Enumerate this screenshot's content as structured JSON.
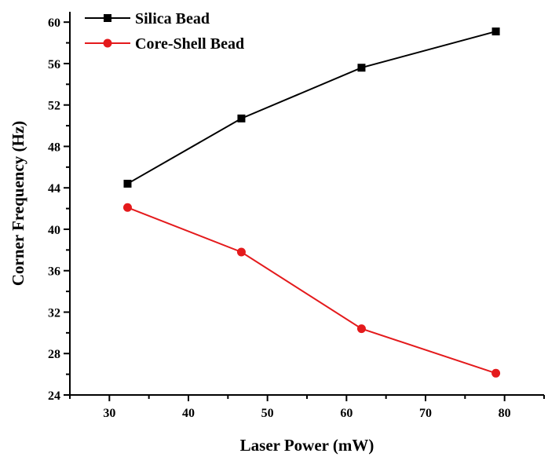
{
  "chart_data": {
    "type": "line",
    "title": "",
    "xlabel": "Laser Power (mW)",
    "ylabel": "Corner Frequency (Hz)",
    "xlim": [
      25,
      85
    ],
    "ylim": [
      24,
      61
    ],
    "xticks": [
      30,
      40,
      50,
      60,
      70,
      80
    ],
    "yticks": [
      24,
      28,
      32,
      36,
      40,
      44,
      48,
      52,
      56,
      60
    ],
    "grid": false,
    "legend": "top-left",
    "series": [
      {
        "name": "Silica Bead",
        "color": "#000000",
        "marker": "square",
        "x": [
          32.3,
          46.7,
          61.9,
          78.9
        ],
        "y": [
          44.4,
          50.7,
          55.6,
          59.1
        ]
      },
      {
        "name": "Core-Shell Bead",
        "color": "#e41a1c",
        "marker": "circle",
        "x": [
          32.3,
          46.7,
          61.9,
          78.9
        ],
        "y": [
          42.1,
          37.8,
          30.4,
          26.1
        ]
      }
    ]
  }
}
